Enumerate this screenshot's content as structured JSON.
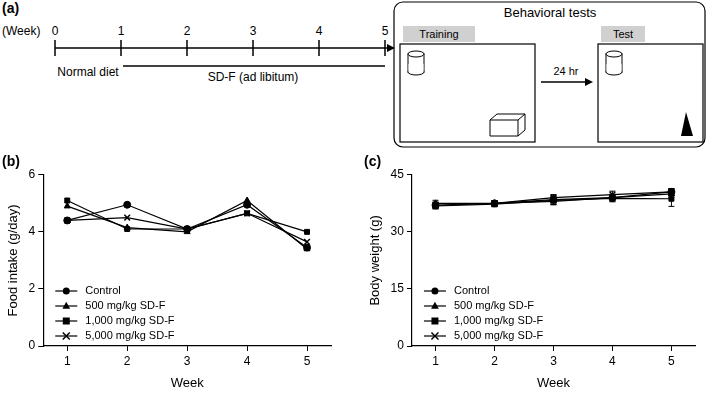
{
  "panel_a": {
    "label": "(a)",
    "timeline": {
      "axis_label": "(Week)",
      "weeks": [
        0,
        1,
        2,
        3,
        4,
        5
      ],
      "phases": [
        {
          "label": "Normal diet",
          "start": 0,
          "end": 1
        },
        {
          "label": "SD-F (ad libitum)",
          "start": 1,
          "end": 5
        }
      ]
    },
    "behavioral_tests": {
      "title": "Behavioral tests",
      "training": "Training",
      "test": "Test",
      "interval": "24 hr"
    }
  },
  "chart_data": [
    {
      "type": "line",
      "title": "(b)",
      "x_label": "Week",
      "y_label": "Food intake (g/day)",
      "x": [
        1,
        2,
        3,
        4,
        5
      ],
      "xlim": [
        0.6,
        5.4
      ],
      "xticks": [
        1,
        2,
        3,
        4,
        5
      ],
      "ylim": [
        0,
        6
      ],
      "yticks": [
        0,
        2,
        4,
        6
      ],
      "grid": false,
      "legend": "lower left",
      "series": [
        {
          "name": "Control",
          "color": "#000000",
          "marker": "circle",
          "line_style": "solid",
          "values": [
            4.4,
            4.95,
            4.1,
            4.95,
            3.45
          ]
        },
        {
          "name": "500 mg/kg SD-F",
          "color": "#000000",
          "marker": "triangle",
          "line_style": "solid",
          "values": [
            4.9,
            4.15,
            4.0,
            5.1,
            3.4
          ]
        },
        {
          "name": "1,000 mg/kg SD-F",
          "color": "#000000",
          "marker": "square",
          "line_style": "solid",
          "values": [
            5.1,
            4.1,
            4.1,
            4.65,
            4.0
          ]
        },
        {
          "name": "5,000 mg/kg SD-F",
          "color": "#000000",
          "marker": "x",
          "line_style": "solid",
          "values": [
            4.4,
            4.5,
            4.1,
            4.65,
            3.65
          ]
        }
      ]
    },
    {
      "type": "line",
      "title": "(c)",
      "x_label": "Week",
      "y_label": "Body weight (g)",
      "x": [
        1,
        2,
        3,
        4,
        5
      ],
      "xlim": [
        0.6,
        5.4
      ],
      "xticks": [
        1,
        2,
        3,
        4,
        5
      ],
      "ylim": [
        0,
        45
      ],
      "yticks": [
        0,
        15,
        30,
        45
      ],
      "grid": false,
      "legend": "lower left",
      "series": [
        {
          "name": "Control",
          "color": "#000000",
          "marker": "circle",
          "line_style": "solid",
          "values": [
            37.0,
            37.5,
            38.5,
            39.0,
            40.5
          ],
          "errors": [
            0.8,
            0.7,
            0.8,
            0.9,
            0.9
          ]
        },
        {
          "name": "500 mg/kg SD-F",
          "color": "#000000",
          "marker": "triangle",
          "line_style": "solid",
          "values": [
            37.5,
            37.5,
            38.0,
            39.0,
            40.0
          ],
          "errors": [
            0.8,
            0.7,
            0.8,
            0.8,
            0.9
          ]
        },
        {
          "name": "1,000 mg/kg SD-F",
          "color": "#000000",
          "marker": "square",
          "line_style": "solid",
          "values": [
            36.8,
            37.3,
            38.3,
            38.8,
            38.7
          ],
          "errors": [
            0.8,
            0.7,
            1.2,
            0.9,
            2.0
          ]
        },
        {
          "name": "5,000 mg/kg SD-F",
          "color": "#000000",
          "marker": "x",
          "line_style": "solid",
          "values": [
            37.0,
            37.5,
            39.0,
            39.8,
            40.5
          ],
          "errors": [
            0.8,
            0.7,
            0.8,
            0.9,
            0.9
          ]
        }
      ]
    }
  ]
}
